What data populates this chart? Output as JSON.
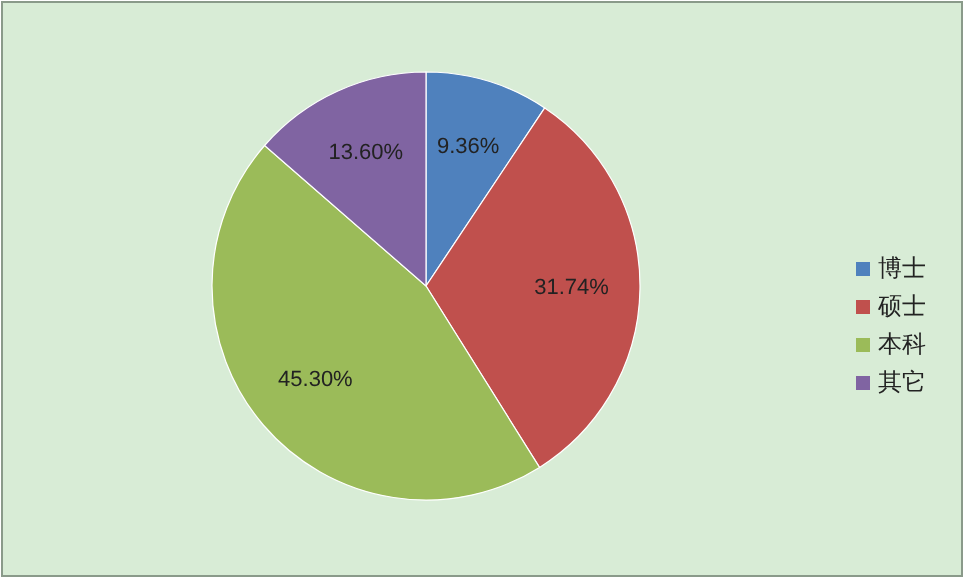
{
  "chart_data": {
    "type": "pie",
    "categories": [
      "博士",
      "硕士",
      "本科",
      "其它"
    ],
    "values": [
      9.36,
      31.74,
      45.3,
      13.6
    ],
    "value_labels": [
      "9.36%",
      "31.74%",
      "45.30%",
      "13.60%"
    ],
    "colors": [
      "#4f81bd",
      "#c0504d",
      "#9bbb59",
      "#8064a2"
    ],
    "legend": "right"
  }
}
